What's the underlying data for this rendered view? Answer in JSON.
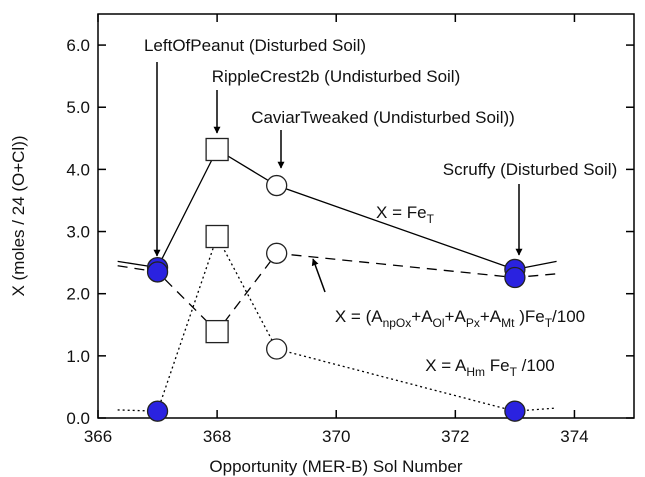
{
  "chart_data": {
    "type": "line",
    "xlabel": "Opportunity (MER-B) Sol Number",
    "ylabel": "X  (moles / 24 (O+Cl))",
    "xlim": [
      366,
      375
    ],
    "xticks": [
      366,
      368,
      370,
      372,
      374
    ],
    "ylim": [
      0,
      6.5
    ],
    "yticks": [
      {
        "value": 0,
        "label": "0.0"
      },
      {
        "value": 1,
        "label": "1.0"
      },
      {
        "value": 2,
        "label": "2.0"
      },
      {
        "value": 3,
        "label": "3.0"
      },
      {
        "value": 4,
        "label": "4.0"
      },
      {
        "value": 5,
        "label": "5.0"
      },
      {
        "value": 6,
        "label": "6.0"
      }
    ],
    "x": [
      366.33,
      367,
      368,
      369,
      373,
      373.7
    ],
    "markers": [
      "none",
      "filled-circle",
      "open-square",
      "open-circle",
      "filled-circle",
      "none"
    ],
    "marker_fill": "#2a22e0",
    "series": [
      {
        "name": "X = FeT",
        "dash": "solid",
        "values": [
          2.52,
          2.42,
          4.32,
          3.74,
          2.39,
          2.52
        ]
      },
      {
        "name": "X = (AnpOx+AOl+APx+AMt)FeT/100",
        "dash": "dashed",
        "values": [
          2.45,
          2.35,
          1.39,
          2.65,
          2.26,
          2.32
        ]
      },
      {
        "name": "X = AHm FeT/100",
        "dash": "dotted",
        "values": [
          0.13,
          0.11,
          2.92,
          1.11,
          0.11,
          0.16
        ]
      }
    ],
    "annotations": [
      {
        "parts": [
          {
            "text": "LeftOfPeanut (Disturbed Soil)"
          }
        ]
      },
      {
        "parts": [
          {
            "text": "RippleCrest2b (Undisturbed Soil)"
          }
        ]
      },
      {
        "parts": [
          {
            "text": "CaviarTweaked (Undisturbed Soil))"
          }
        ]
      },
      {
        "parts": [
          {
            "text": "Scruffy (Disturbed Soil)"
          }
        ]
      },
      {
        "parts": [
          {
            "text": "X = Fe"
          },
          {
            "text": "T",
            "sub": true
          }
        ]
      },
      {
        "parts": [
          {
            "text": "X = (A"
          },
          {
            "text": "npOx",
            "sub": true
          },
          {
            "text": "+A"
          },
          {
            "text": "Ol",
            "sub": true
          },
          {
            "text": "+A"
          },
          {
            "text": "Px",
            "sub": true
          },
          {
            "text": "+A"
          },
          {
            "text": "Mt",
            "sub": true
          },
          {
            "text": " )Fe"
          },
          {
            "text": "T",
            "sub": true
          },
          {
            "text": "/100"
          }
        ]
      },
      {
        "parts": [
          {
            "text": "X = A"
          },
          {
            "text": "Hm",
            "sub": true
          },
          {
            "text": " Fe"
          },
          {
            "text": "T",
            "sub": true
          },
          {
            "text": " /100"
          }
        ]
      }
    ]
  }
}
